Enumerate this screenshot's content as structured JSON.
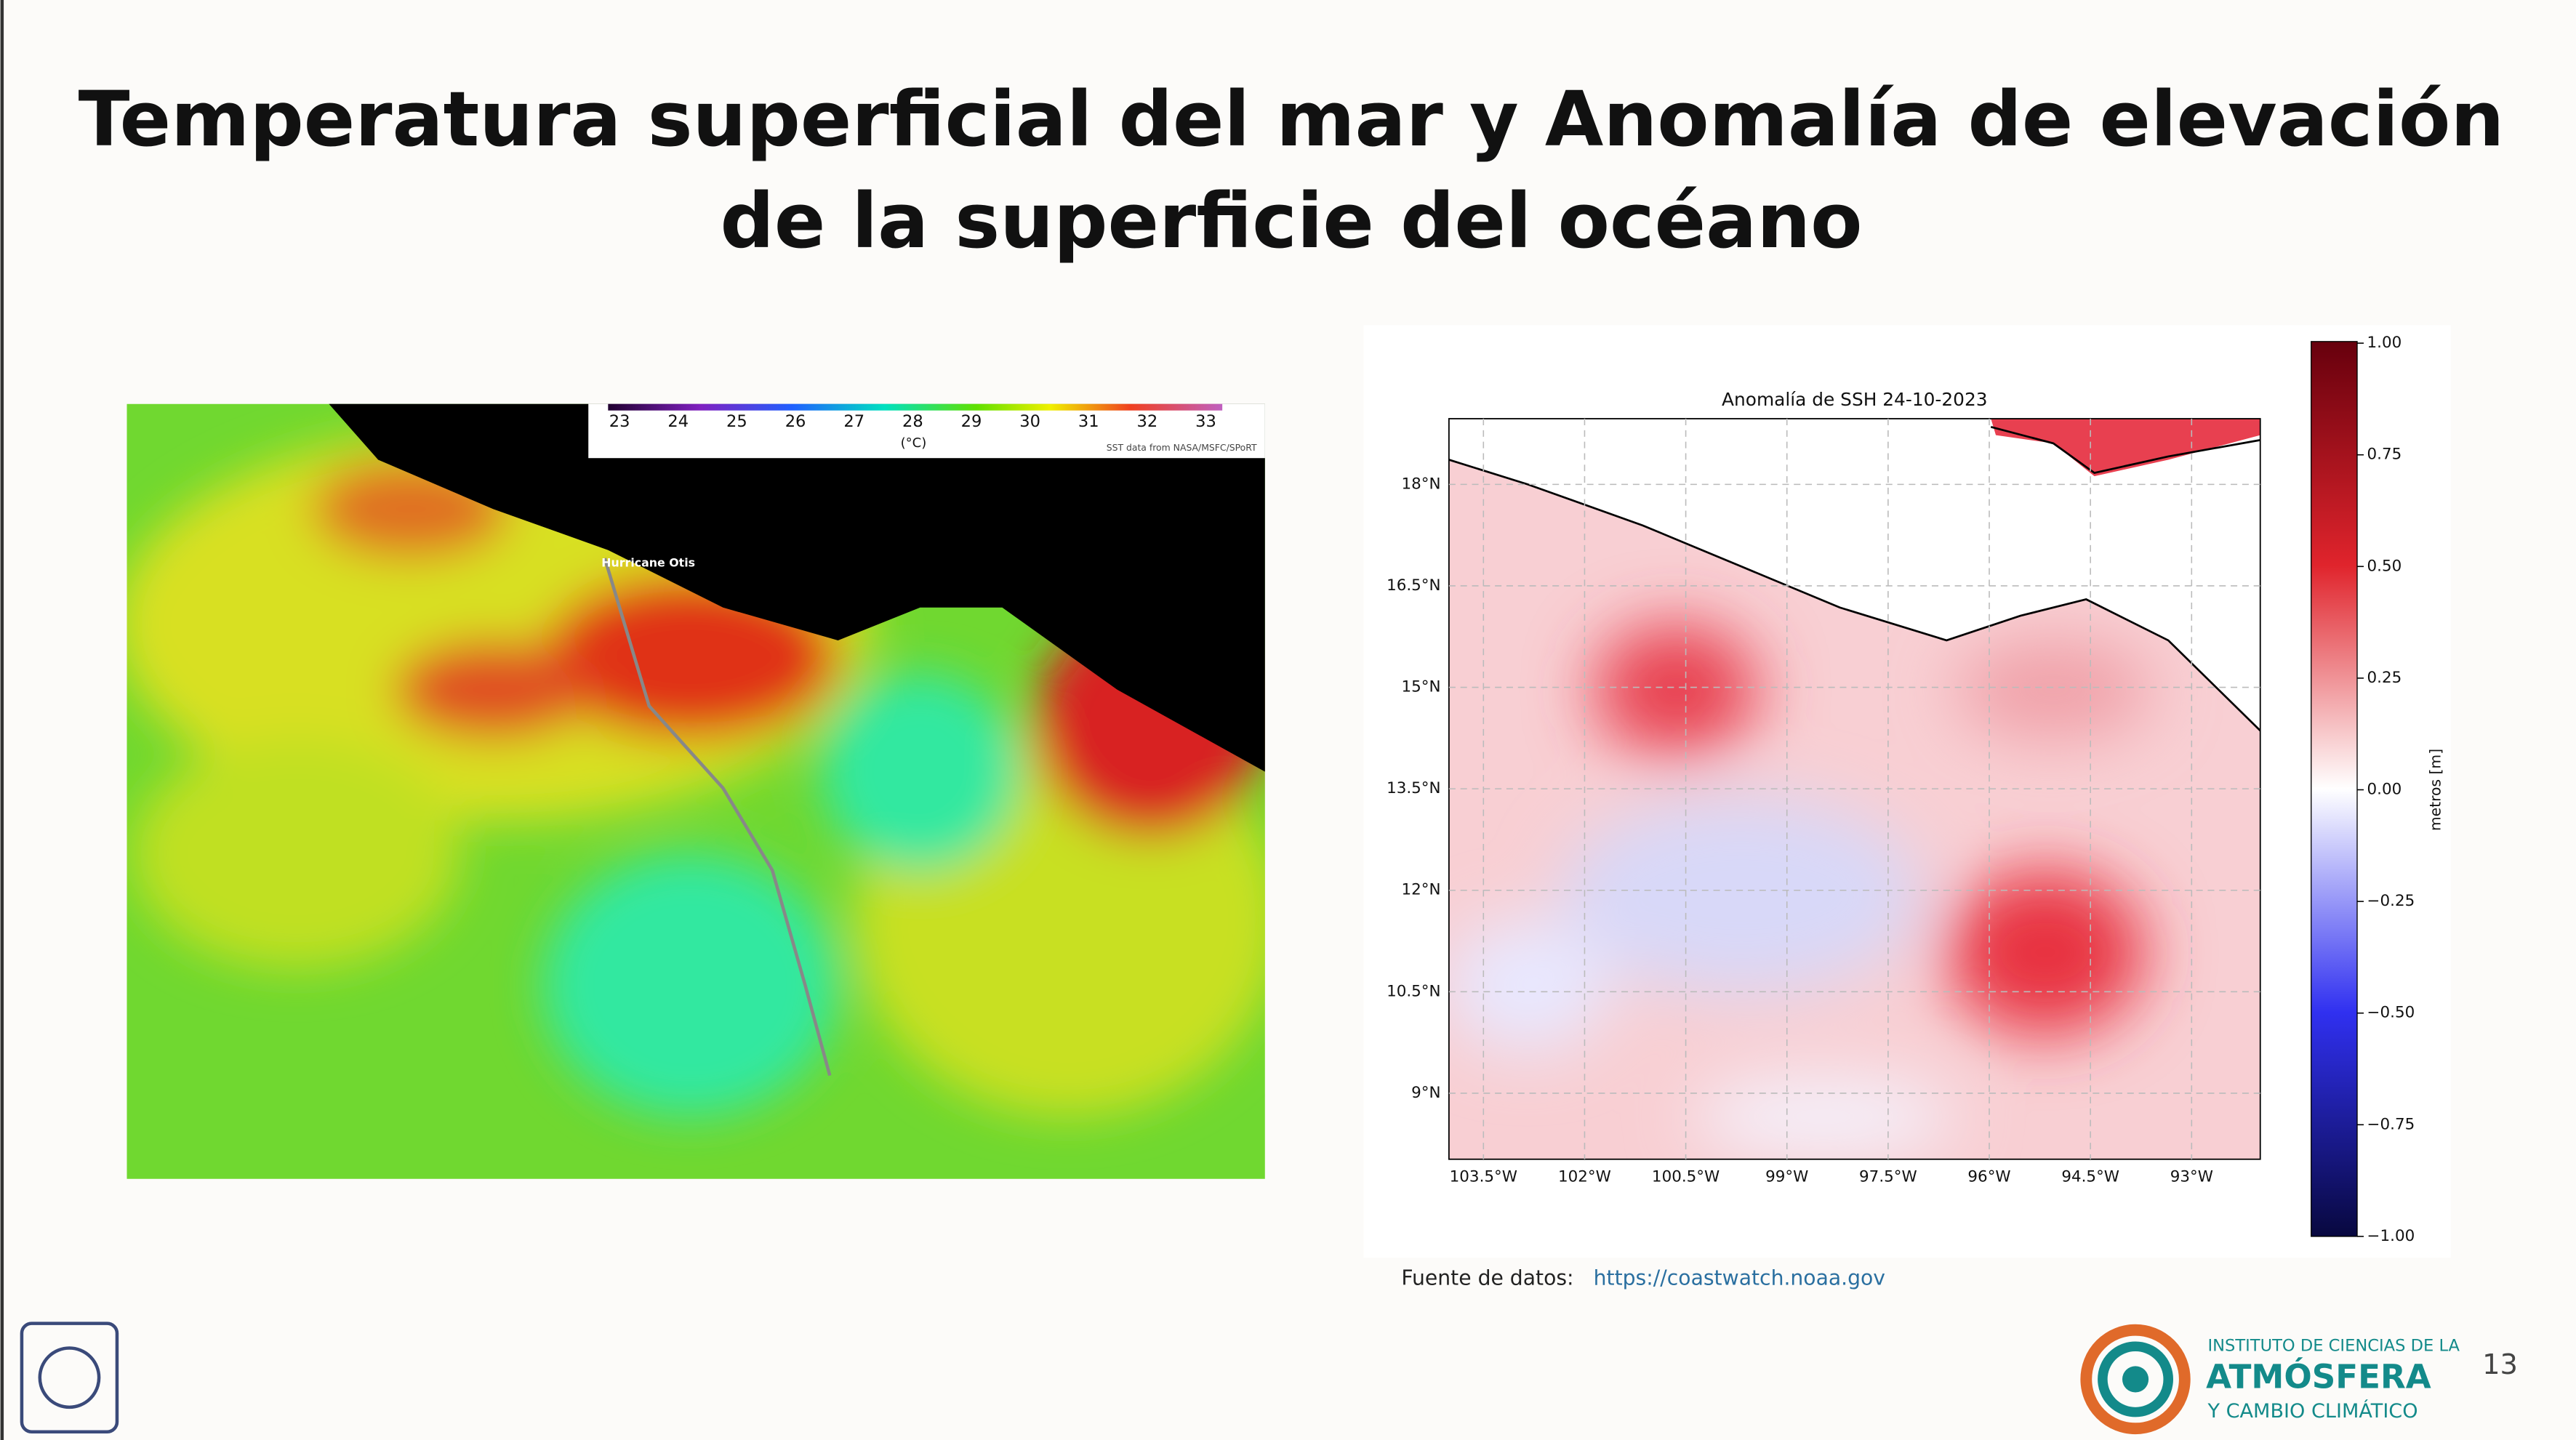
{
  "title": [
    "Temperatura superficial del mar y Anomalía de elevación",
    "de la superficie del océano"
  ],
  "sst_map": {
    "colorbar_ticks": [
      "23",
      "24",
      "25",
      "26",
      "27",
      "28",
      "29",
      "30",
      "31",
      "32",
      "33"
    ],
    "unit": "(°C)",
    "credit": "SST data from NASA/MSFC/SPoRT",
    "annotation": "Hurricane Otis"
  },
  "ssh_map": {
    "title": "Anomalía de SSH 24-10-2023",
    "y_labels": [
      "18°N",
      "16.5°N",
      "15°N",
      "13.5°N",
      "12°N",
      "10.5°N",
      "9°N"
    ],
    "x_labels": [
      "103.5°W",
      "102°W",
      "100.5°W",
      "99°W",
      "97.5°W",
      "96°W",
      "94.5°W",
      "93°W"
    ],
    "colorbar_ticks": [
      "1.00",
      "0.75",
      "0.50",
      "0.25",
      "0.00",
      "−0.25",
      "−0.50",
      "−0.75",
      "−1.00"
    ],
    "colorbar_label": "metros [m]"
  },
  "source": {
    "label": "Fuente de datos:",
    "link": "https://coastwatch.noaa.gov"
  },
  "logo": {
    "line1": "INSTITUTO DE CIENCIAS DE LA",
    "line2": "ATMÓSFERA",
    "line3": "Y CAMBIO CLIMÁTICO"
  },
  "page_number": "13"
}
